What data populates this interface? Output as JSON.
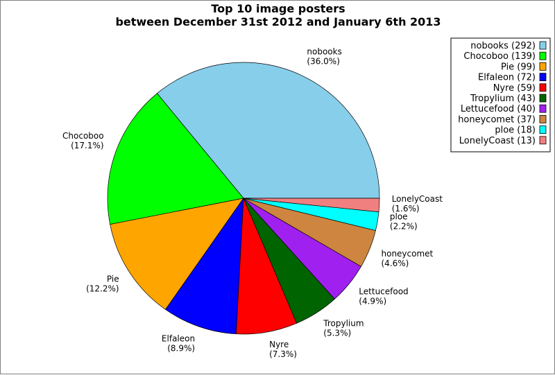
{
  "chart_data": {
    "type": "pie",
    "title": "Top 10 image posters",
    "subtitle": "between December 31st 2012 and January 6th 2013",
    "legend_position": "top-right",
    "slices": [
      {
        "name": "nobooks",
        "value": 292,
        "percent": "36.0%",
        "legend": "nobooks (292)",
        "color": "#87CEEB"
      },
      {
        "name": "Chocoboo",
        "value": 139,
        "percent": "17.1%",
        "legend": "Chocoboo (139)",
        "color": "#00FF00"
      },
      {
        "name": "Pie",
        "value": 99,
        "percent": "12.2%",
        "legend": "Pie (99)",
        "color": "#FFA500"
      },
      {
        "name": "Elfaleon",
        "value": 72,
        "percent": "8.9%",
        "legend": "Elfaleon (72)",
        "color": "#0000FF"
      },
      {
        "name": "Nyre",
        "value": 59,
        "percent": "7.3%",
        "legend": "Nyre (59)",
        "color": "#FF0000"
      },
      {
        "name": "Tropylium",
        "value": 43,
        "percent": "5.3%",
        "legend": "Tropylium (43)",
        "color": "#006400"
      },
      {
        "name": "Lettucefood",
        "value": 40,
        "percent": "4.9%",
        "legend": "Lettucefood (40)",
        "color": "#A020F0"
      },
      {
        "name": "honeycomet",
        "value": 37,
        "percent": "4.6%",
        "legend": "honeycomet (37)",
        "color": "#CD853F"
      },
      {
        "name": "ploe",
        "value": 18,
        "percent": "2.2%",
        "legend": "ploe (18)",
        "color": "#00FFFF"
      },
      {
        "name": "LonelyCoast",
        "value": 13,
        "percent": "1.6%",
        "legend": "LonelyCoast (13)",
        "color": "#F08080"
      }
    ]
  }
}
